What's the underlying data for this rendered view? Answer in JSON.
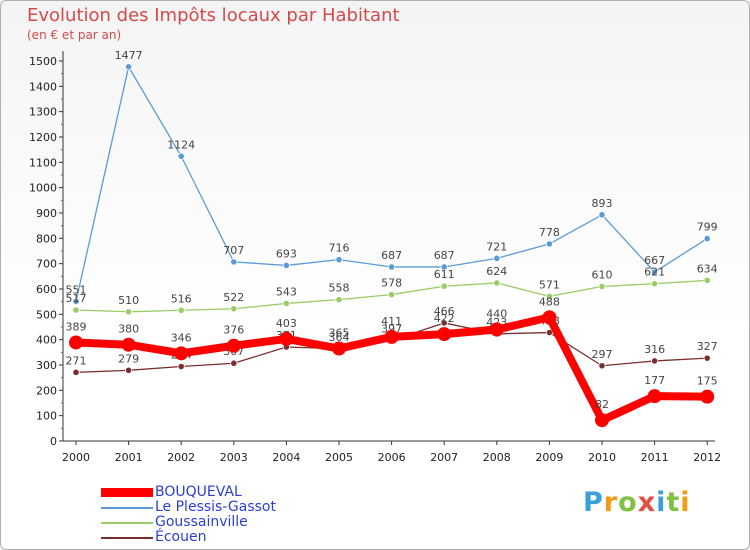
{
  "chart_data": {
    "type": "line",
    "title": "Evolution des Impôts locaux par Habitant",
    "subtitle": "(en € et par an)",
    "xlabel": "",
    "ylabel": "",
    "x": [
      "2000",
      "2001",
      "2002",
      "2003",
      "2004",
      "2005",
      "2006",
      "2007",
      "2008",
      "2009",
      "2010",
      "2011",
      "2012"
    ],
    "y_ticks": [
      "0",
      "100",
      "200",
      "300",
      "400",
      "500",
      "600",
      "700",
      "800",
      "900",
      "1000",
      "1100",
      "1200",
      "1300",
      "1400",
      "1500"
    ],
    "ylim": [
      0,
      1500
    ],
    "grid": false,
    "legend_position": "bottom-left",
    "series": [
      {
        "name": "BOUQUEVAL",
        "color": "#ff0000",
        "emphasis": "thick",
        "values": [
          389,
          380,
          346,
          376,
          403,
          365,
          411,
          422,
          440,
          488,
          82,
          177,
          175
        ],
        "labels": [
          "389",
          "380",
          "346",
          "376",
          "403",
          "365",
          "411",
          "422",
          "440",
          "488",
          "82",
          "177",
          "175"
        ]
      },
      {
        "name": "Le Plessis-Gassot",
        "color": "#5b9bd5",
        "emphasis": "thin",
        "values": [
          551,
          1477,
          1124,
          707,
          693,
          716,
          687,
          687,
          721,
          778,
          893,
          667,
          799
        ],
        "labels": [
          "551",
          "1477",
          "1124",
          "707",
          "693",
          "716",
          "687",
          "687",
          "721",
          "778",
          "893",
          "667",
          "799"
        ]
      },
      {
        "name": "Goussainville",
        "color": "#99cc66",
        "emphasis": "thin",
        "values": [
          517,
          510,
          516,
          522,
          543,
          558,
          578,
          611,
          624,
          571,
          610,
          621,
          634
        ],
        "labels": [
          "517",
          "510",
          "516",
          "522",
          "543",
          "558",
          "578",
          "611",
          "624",
          "571",
          "610",
          "621",
          "634"
        ]
      },
      {
        "name": "Écouen",
        "color": "#7a2e2e",
        "emphasis": "thin",
        "values": [
          271,
          279,
          294,
          307,
          371,
          364,
          397,
          466,
          423,
          428,
          297,
          316,
          327
        ],
        "labels": [
          "271",
          "279",
          "294",
          "307",
          "371",
          "364",
          "397",
          "466",
          "423",
          "428",
          "297",
          "316",
          "327"
        ]
      }
    ]
  },
  "logo": {
    "letters": [
      "P",
      "r",
      "o",
      "x",
      "i",
      "t",
      "i"
    ],
    "colors": [
      "#3aa0dc",
      "#f39c12",
      "#7fc241",
      "#e74c3c",
      "#3aa0dc",
      "#7fc241",
      "#f39c12"
    ]
  }
}
